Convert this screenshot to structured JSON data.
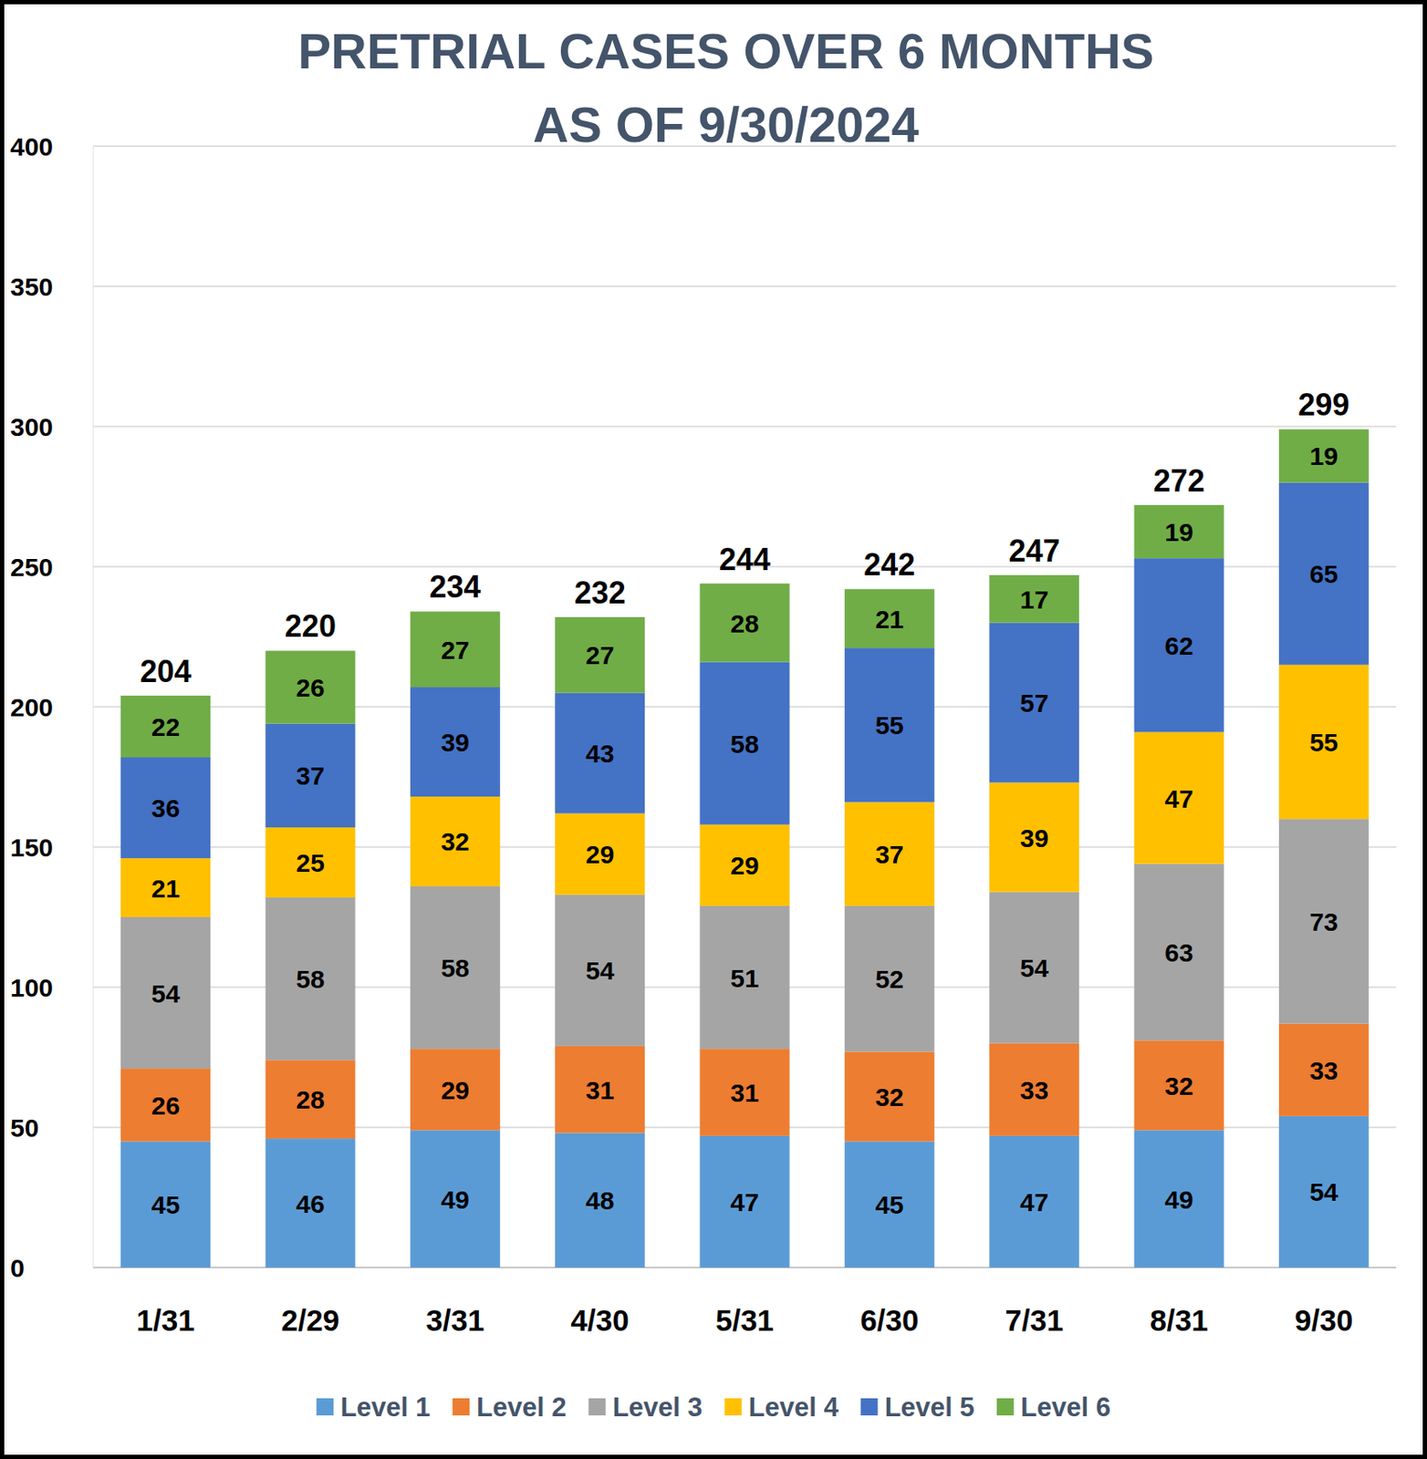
{
  "chart_data": {
    "type": "bar",
    "title": "PRETRIAL CASES OVER 6 MONTHS",
    "subtitle": "AS OF 9/30/2024",
    "categories": [
      "1/31",
      "2/29",
      "3/31",
      "4/30",
      "5/31",
      "6/30",
      "7/31",
      "8/31",
      "9/30"
    ],
    "series": [
      {
        "name": "Level 1",
        "color": "#5b9bd5",
        "values": [
          45,
          46,
          49,
          48,
          47,
          45,
          47,
          49,
          54
        ]
      },
      {
        "name": "Level 2",
        "color": "#ed7d31",
        "values": [
          26,
          28,
          29,
          31,
          31,
          32,
          33,
          32,
          33
        ]
      },
      {
        "name": "Level 3",
        "color": "#a5a5a5",
        "values": [
          54,
          58,
          58,
          54,
          51,
          52,
          54,
          63,
          73
        ]
      },
      {
        "name": "Level 4",
        "color": "#ffc000",
        "values": [
          21,
          25,
          32,
          29,
          29,
          37,
          39,
          47,
          55
        ]
      },
      {
        "name": "Level 5",
        "color": "#4472c4",
        "values": [
          36,
          37,
          39,
          43,
          58,
          55,
          57,
          62,
          65
        ]
      },
      {
        "name": "Level 6",
        "color": "#70ad47",
        "values": [
          22,
          26,
          27,
          27,
          28,
          21,
          17,
          19,
          19
        ]
      }
    ],
    "totals": [
      204,
      220,
      234,
      232,
      244,
      242,
      247,
      272,
      299
    ],
    "ylim": [
      0,
      400
    ],
    "yticks": [
      0,
      50,
      100,
      150,
      200,
      250,
      300,
      350,
      400
    ],
    "grid": true,
    "stacked": true,
    "data_labels": true,
    "legend": "bottom"
  }
}
